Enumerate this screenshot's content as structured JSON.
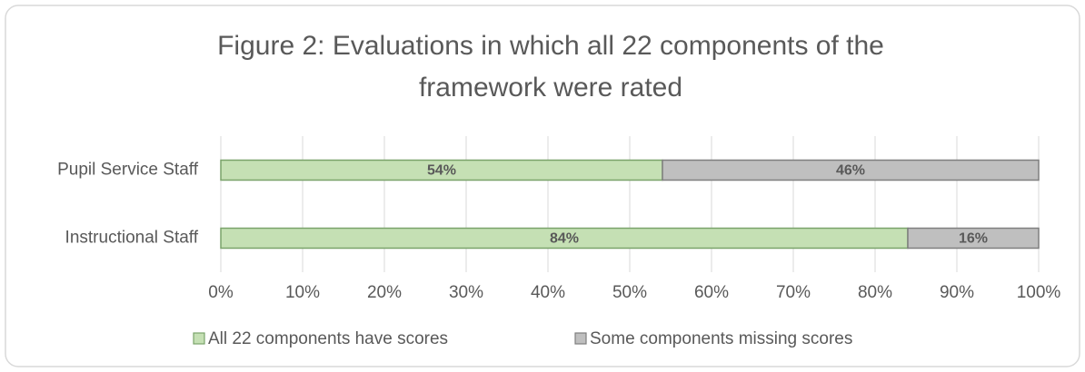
{
  "chart_data": {
    "type": "stacked-bar-horizontal",
    "title": [
      "Figure 2:  Evaluations in which all 22 components of the",
      "framework were rated"
    ],
    "categories": [
      "Pupil Service Staff",
      "Instructional Staff"
    ],
    "series": [
      {
        "name": "All 22 components have scores",
        "color": "#c5e0b4",
        "values": [
          54,
          84
        ],
        "value_labels": [
          "54%",
          "84%"
        ]
      },
      {
        "name": "Some components missing scores",
        "color": "#bfbfbf",
        "values": [
          46,
          16
        ],
        "value_labels": [
          "46%",
          "16%"
        ]
      }
    ],
    "xlim": [
      0,
      100
    ],
    "xticks": [
      {
        "value": 0,
        "label": "0%"
      },
      {
        "value": 10,
        "label": "10%"
      },
      {
        "value": 20,
        "label": "20%"
      },
      {
        "value": 30,
        "label": "30%"
      },
      {
        "value": 40,
        "label": "40%"
      },
      {
        "value": 50,
        "label": "50%"
      },
      {
        "value": 60,
        "label": "60%"
      },
      {
        "value": 70,
        "label": "70%"
      },
      {
        "value": 80,
        "label": "80%"
      },
      {
        "value": 90,
        "label": "90%"
      },
      {
        "value": 100,
        "label": "100%"
      }
    ],
    "grid": true,
    "legend": "bottom"
  }
}
